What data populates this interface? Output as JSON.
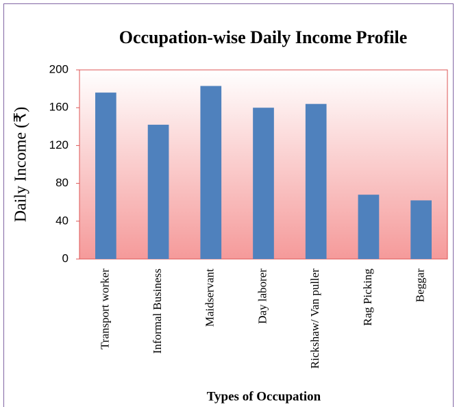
{
  "chart_data": {
    "type": "bar",
    "title": "Occupation-wise Daily Income Profile",
    "y_label": "Daily Income (₹)",
    "x_label": "Types of Occupation",
    "categories": [
      "Transport worker",
      "Informal Business",
      "Maidservant",
      "Day laborer",
      "Rickshaw/ Van puller",
      "Rag Picking",
      "Beggar"
    ],
    "values": [
      176,
      142,
      183,
      160,
      164,
      68,
      62
    ],
    "color": "#4f81bd",
    "ylim": [
      0,
      200
    ],
    "yticks": [
      0,
      40,
      80,
      120,
      160,
      200
    ],
    "grid": false
  }
}
